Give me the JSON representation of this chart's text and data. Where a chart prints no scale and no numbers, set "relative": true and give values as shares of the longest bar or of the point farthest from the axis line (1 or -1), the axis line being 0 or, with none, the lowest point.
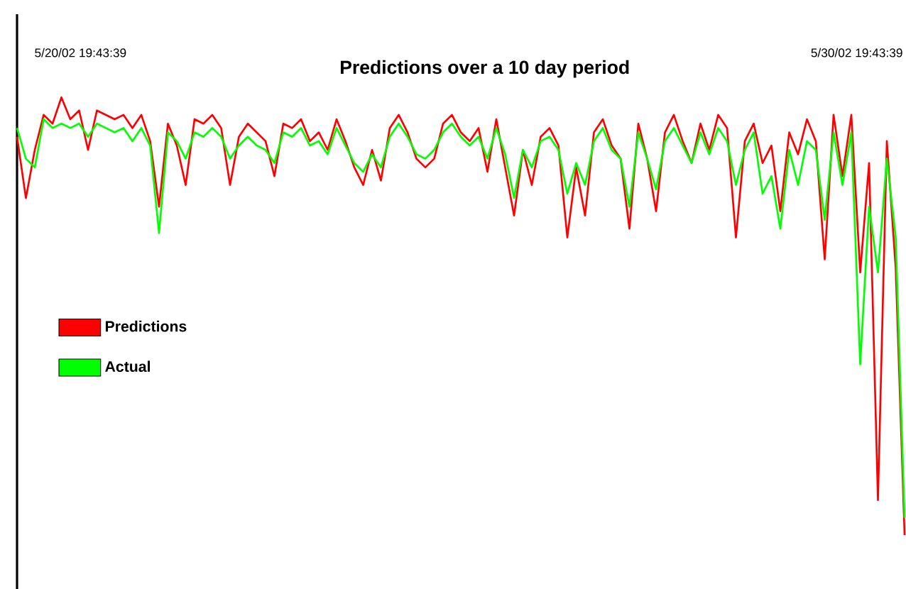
{
  "chart_data": {
    "type": "line",
    "title": "Predictions over a 10 day period",
    "relative": true,
    "categories": [
      null,
      null,
      null,
      null,
      null,
      null,
      null,
      null,
      null,
      null,
      null,
      null,
      null,
      null,
      null,
      null,
      null,
      null,
      null,
      null,
      null,
      null,
      null,
      null,
      null,
      null,
      null,
      null,
      null,
      null,
      null,
      null,
      null,
      null,
      null,
      null,
      null,
      null,
      null,
      null,
      null,
      null,
      null,
      null,
      null,
      null,
      null,
      null,
      null,
      null,
      null,
      null,
      null,
      null,
      null,
      null,
      null,
      null,
      null,
      null,
      null,
      null,
      null,
      null,
      null,
      null,
      null,
      null,
      null,
      null,
      null,
      null,
      null,
      null,
      null,
      null,
      null,
      null,
      null,
      null,
      null,
      null,
      null,
      null,
      null,
      null,
      null,
      null,
      null,
      null,
      null,
      null,
      null,
      null,
      null,
      null,
      null,
      null,
      null,
      null,
      null
    ],
    "series": [
      {
        "name": "Predictions",
        "color": "#ff0000",
        "values": [
          0.91,
          0.77,
          0.88,
          0.96,
          0.94,
          1,
          0.95,
          0.97,
          0.88,
          0.97,
          0.96,
          0.95,
          0.96,
          0.93,
          0.96,
          0.9,
          0.75,
          0.94,
          0.89,
          0.8,
          0.95,
          0.94,
          0.96,
          0.93,
          0.8,
          0.91,
          0.94,
          0.92,
          0.9,
          0.82,
          0.94,
          0.93,
          0.95,
          0.9,
          0.92,
          0.88,
          0.95,
          0.9,
          0.84,
          0.8,
          0.88,
          0.81,
          0.93,
          0.96,
          0.92,
          0.86,
          0.84,
          0.86,
          0.94,
          0.96,
          0.92,
          0.9,
          0.93,
          0.83,
          0.95,
          0.84,
          0.73,
          0.88,
          0.8,
          0.91,
          0.93,
          0.89,
          0.68,
          0.84,
          0.73,
          0.92,
          0.95,
          0.89,
          0.86,
          0.7,
          0.94,
          0.86,
          0.74,
          0.92,
          0.96,
          0.9,
          0.85,
          0.94,
          0.88,
          0.96,
          0.93,
          0.68,
          0.9,
          0.94,
          0.85,
          0.89,
          0.74,
          0.92,
          0.87,
          0.95,
          0.9,
          0.63,
          0.96,
          0.82,
          0.96,
          0.6,
          0.85,
          0.08,
          0.9,
          0.61,
          0
        ]
      },
      {
        "name": "Actual",
        "color": "#00ff00",
        "values": [
          0.93,
          0.86,
          0.84,
          0.95,
          0.93,
          0.94,
          0.93,
          0.94,
          0.91,
          0.94,
          0.93,
          0.92,
          0.93,
          0.9,
          0.93,
          0.89,
          0.69,
          0.92,
          0.9,
          0.86,
          0.92,
          0.91,
          0.93,
          0.91,
          0.86,
          0.89,
          0.91,
          0.89,
          0.88,
          0.85,
          0.92,
          0.91,
          0.93,
          0.89,
          0.9,
          0.87,
          0.93,
          0.89,
          0.85,
          0.83,
          0.87,
          0.84,
          0.91,
          0.94,
          0.91,
          0.87,
          0.86,
          0.88,
          0.92,
          0.94,
          0.91,
          0.89,
          0.91,
          0.86,
          0.93,
          0.87,
          0.77,
          0.88,
          0.84,
          0.9,
          0.91,
          0.88,
          0.78,
          0.85,
          0.8,
          0.9,
          0.93,
          0.88,
          0.86,
          0.75,
          0.92,
          0.86,
          0.79,
          0.9,
          0.93,
          0.89,
          0.85,
          0.92,
          0.87,
          0.93,
          0.9,
          0.8,
          0.88,
          0.92,
          0.78,
          0.82,
          0.7,
          0.88,
          0.8,
          0.9,
          0.88,
          0.72,
          0.92,
          0.8,
          0.92,
          0.39,
          0.75,
          0.6,
          0.86,
          0.68,
          0.04
        ]
      }
    ],
    "annotations": [
      "5/20/02  19:43:39",
      "5/30/02  19:43:39"
    ],
    "legend": "left",
    "marker": "none",
    "line_style": "solid"
  }
}
